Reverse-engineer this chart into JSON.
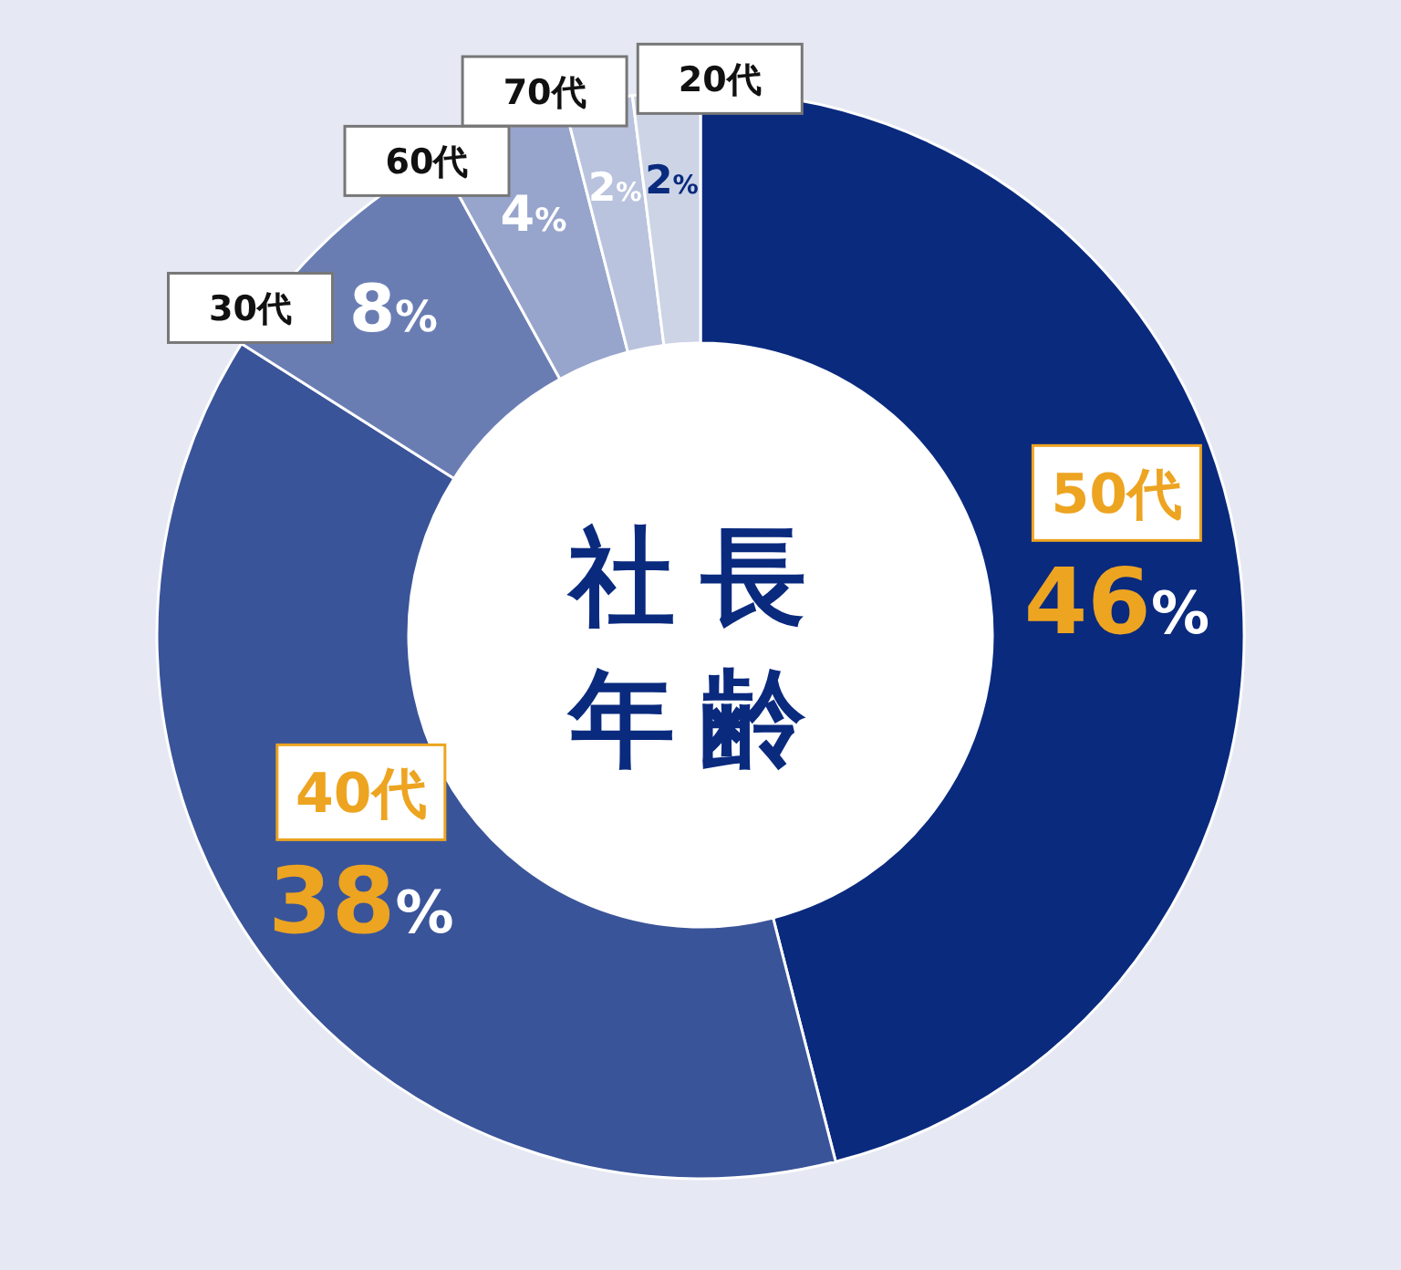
{
  "chart_data": {
    "type": "donut",
    "title": "社長年齢",
    "categories": [
      "50代",
      "40代",
      "30代",
      "60代",
      "70代",
      "20代"
    ],
    "values": [
      46,
      38,
      8,
      4,
      2,
      2
    ],
    "value_labels": [
      "46%",
      "38%",
      "8%",
      "4%",
      "2%",
      "2%"
    ],
    "colors": [
      "#0a2a7e",
      "#3a5499",
      "#6a7db3",
      "#97a5cc",
      "#b9c3de",
      "#ccd4e6"
    ]
  }
}
